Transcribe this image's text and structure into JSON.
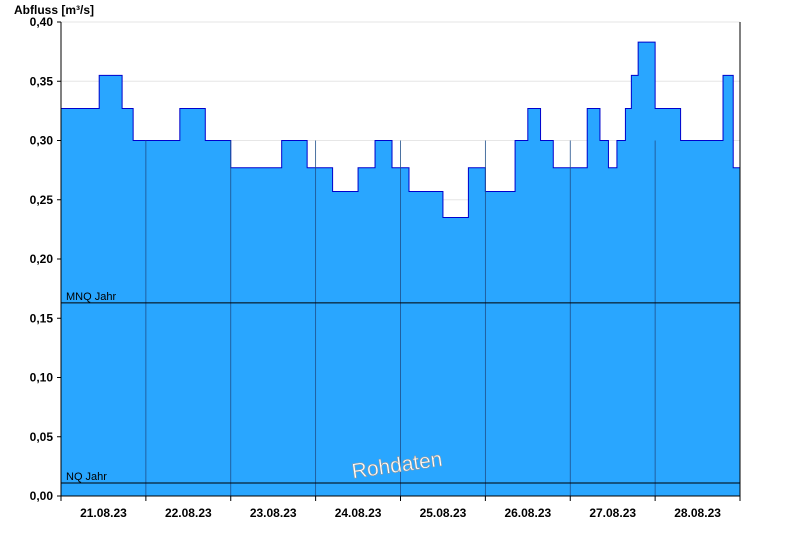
{
  "chart_data": {
    "type": "area",
    "ylabel": "Abfluss [m³/s]",
    "ylim": [
      0,
      0.4
    ],
    "y_ticks": [
      "0,00",
      "0,05",
      "0,10",
      "0,15",
      "0,20",
      "0,25",
      "0,30",
      "0,35",
      "0,40"
    ],
    "y_tick_values": [
      0,
      0.05,
      0.1,
      0.15,
      0.2,
      0.25,
      0.3,
      0.35,
      0.4
    ],
    "x_range_days": [
      0,
      8
    ],
    "x_ticks": [
      "21.08.23",
      "22.08.23",
      "23.08.23",
      "24.08.23",
      "25.08.23",
      "26.08.23",
      "27.08.23",
      "28.08.23"
    ],
    "grid": true,
    "fill_color": "#29a6ff",
    "line_color": "#0000cc",
    "reference_lines": [
      {
        "label": "MNQ Jahr",
        "value": 0.163
      },
      {
        "label": "NQ Jahr",
        "value": 0.011
      }
    ],
    "watermark": "Rohdaten",
    "series": [
      {
        "x": [
          0,
          0.35,
          0.45,
          0.72,
          0.85,
          1.0,
          1.4,
          1.7,
          1.85,
          2.0,
          2.6,
          2.9,
          3.0,
          3.2,
          3.5,
          3.7,
          3.9,
          4.1,
          4.3,
          4.5,
          4.65,
          4.8,
          5.0,
          5.2,
          5.35,
          5.5,
          5.65,
          5.8,
          6.0,
          6.2,
          6.35,
          6.45,
          6.55,
          6.65,
          6.72,
          6.8,
          7.0,
          7.3,
          7.5,
          7.8,
          7.92,
          8.0
        ],
        "y": [
          0.327,
          0.327,
          0.355,
          0.327,
          0.3,
          0.3,
          0.327,
          0.3,
          0.3,
          0.277,
          0.3,
          0.277,
          0.277,
          0.257,
          0.277,
          0.3,
          0.277,
          0.257,
          0.257,
          0.235,
          0.235,
          0.277,
          0.257,
          0.257,
          0.3,
          0.327,
          0.3,
          0.277,
          0.277,
          0.327,
          0.3,
          0.277,
          0.3,
          0.327,
          0.355,
          0.383,
          0.327,
          0.3,
          0.3,
          0.355,
          0.277,
          0.3
        ]
      }
    ]
  }
}
